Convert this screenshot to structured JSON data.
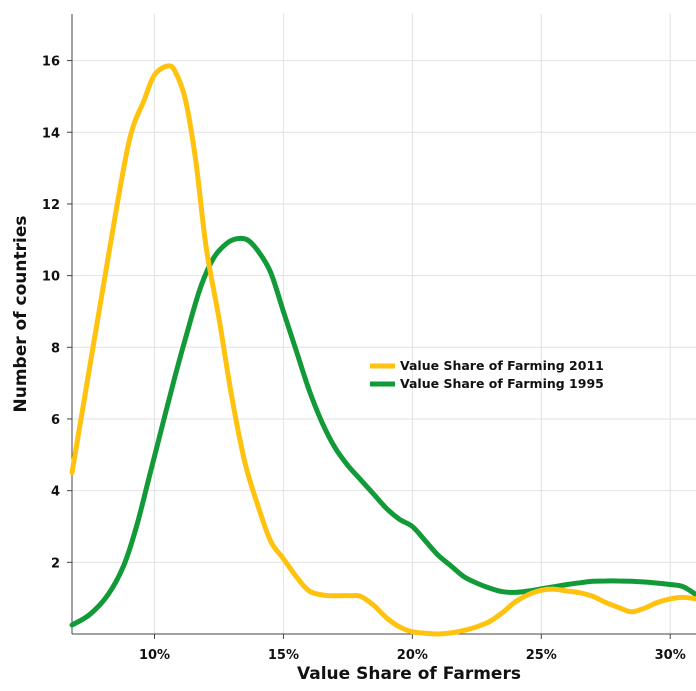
{
  "chart_data": {
    "type": "line",
    "title": "",
    "xlabel": "Value Share of Farmers",
    "ylabel": "Number of countries",
    "xlim": [
      6.8,
      31
    ],
    "ylim": [
      0,
      17.3
    ],
    "x_ticks": [
      10,
      15,
      20,
      25,
      30
    ],
    "x_tick_labels": [
      "10%",
      "15%",
      "20%",
      "25%",
      "30%"
    ],
    "y_ticks": [
      2,
      4,
      6,
      8,
      10,
      12,
      14,
      16
    ],
    "y_tick_labels": [
      "2",
      "4",
      "6",
      "8",
      "10",
      "12",
      "14",
      "16"
    ],
    "grid": true,
    "legend_position": "center-right",
    "series": [
      {
        "name": "Value Share of Farming 2011",
        "color": "#FFC20E",
        "x": [
          6.8,
          7.5,
          8.2,
          9.0,
          9.6,
          10.0,
          10.5,
          10.8,
          11.2,
          11.6,
          12.0,
          12.5,
          13.0,
          13.5,
          14.0,
          14.5,
          15.0,
          15.5,
          16.0,
          16.6,
          17.2,
          17.6,
          18.0,
          18.5,
          19.0,
          19.5,
          20.0,
          20.5,
          21.0,
          21.5,
          22.0,
          22.5,
          23.0,
          23.5,
          24.0,
          24.5,
          25.0,
          25.5,
          26.0,
          26.5,
          27.0,
          27.5,
          28.0,
          28.5,
          29.0,
          29.5,
          30.0,
          30.5,
          31.0
        ],
        "values": [
          4.5,
          7.5,
          10.5,
          13.7,
          14.9,
          15.6,
          15.85,
          15.7,
          14.9,
          13.2,
          10.8,
          8.8,
          6.6,
          4.8,
          3.6,
          2.6,
          2.1,
          1.6,
          1.2,
          1.08,
          1.07,
          1.07,
          1.05,
          0.8,
          0.45,
          0.2,
          0.06,
          0.02,
          0.0,
          0.03,
          0.1,
          0.2,
          0.35,
          0.6,
          0.9,
          1.1,
          1.22,
          1.25,
          1.2,
          1.15,
          1.05,
          0.88,
          0.74,
          0.62,
          0.72,
          0.88,
          0.98,
          1.02,
          0.98
        ]
      },
      {
        "name": "Value Share of Farming 1995",
        "color": "#119A37",
        "x": [
          6.8,
          7.5,
          8.2,
          8.8,
          9.3,
          9.8,
          10.3,
          10.8,
          11.3,
          11.8,
          12.3,
          12.8,
          13.2,
          13.6,
          14.0,
          14.5,
          15.0,
          15.5,
          16.0,
          16.5,
          17.0,
          17.5,
          18.0,
          18.5,
          19.0,
          19.5,
          20.0,
          20.5,
          21.0,
          21.5,
          22.0,
          22.5,
          23.0,
          23.5,
          24.0,
          24.5,
          25.0,
          25.5,
          26.0,
          26.5,
          27.0,
          27.5,
          28.0,
          28.5,
          29.0,
          29.5,
          30.0,
          30.5,
          31.0
        ],
        "values": [
          0.25,
          0.55,
          1.1,
          1.9,
          3.0,
          4.4,
          5.8,
          7.2,
          8.5,
          9.7,
          10.5,
          10.9,
          11.03,
          11.0,
          10.7,
          10.1,
          9.0,
          7.9,
          6.8,
          5.9,
          5.2,
          4.7,
          4.3,
          3.9,
          3.5,
          3.2,
          3.0,
          2.6,
          2.2,
          1.9,
          1.6,
          1.42,
          1.28,
          1.18,
          1.16,
          1.2,
          1.26,
          1.32,
          1.38,
          1.43,
          1.47,
          1.48,
          1.48,
          1.47,
          1.45,
          1.42,
          1.38,
          1.32,
          1.1
        ]
      }
    ]
  }
}
